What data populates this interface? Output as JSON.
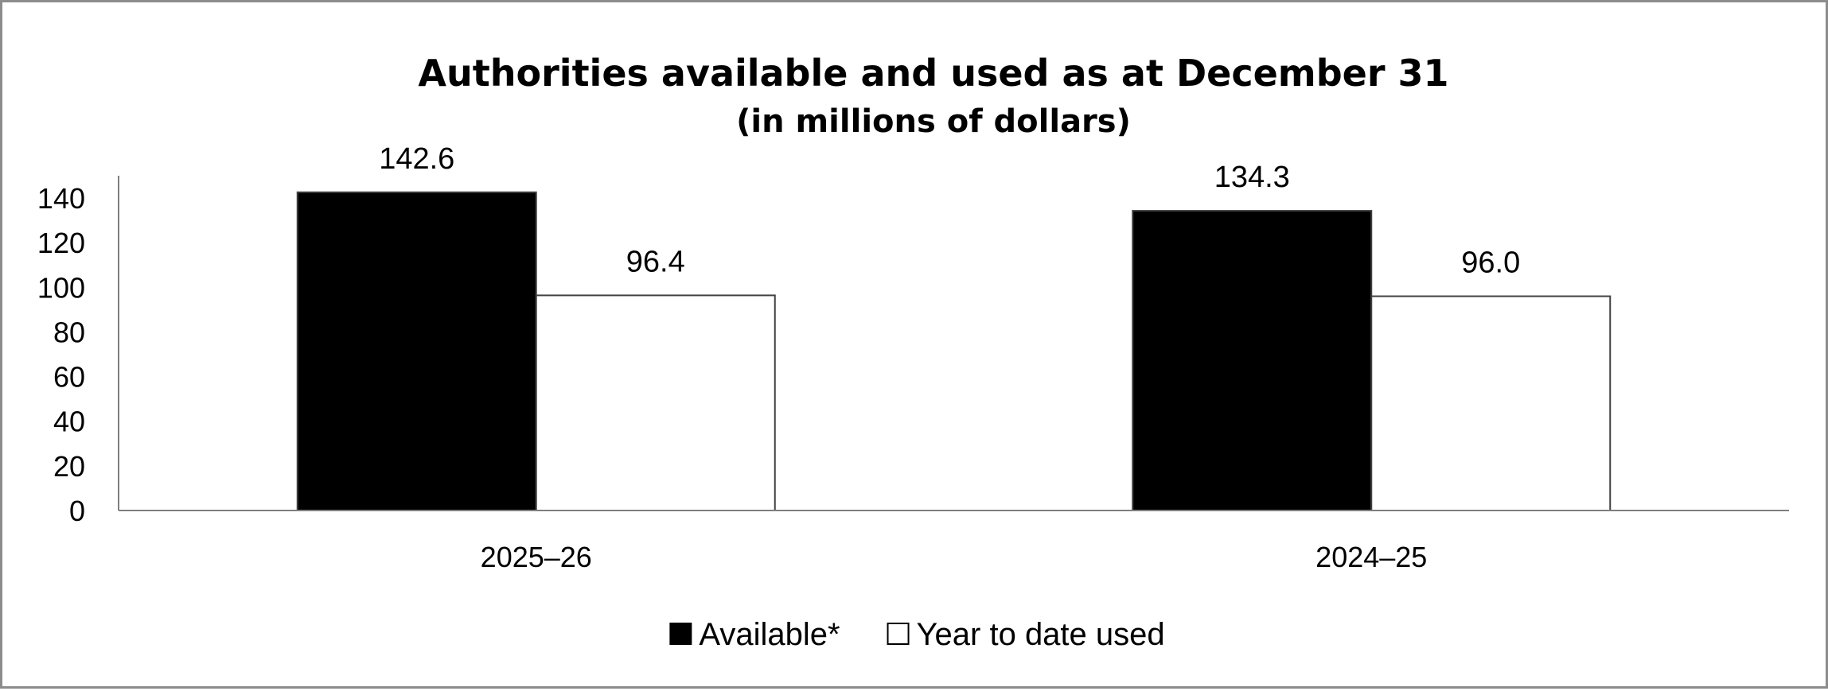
{
  "chart_data": {
    "type": "bar",
    "title": "Authorities available and used as at December 31",
    "subtitle": "(in millions of dollars)",
    "categories": [
      "2025–26",
      "2024–25"
    ],
    "series": [
      {
        "name": "Available*",
        "values": [
          142.6,
          134.3
        ],
        "value_labels": [
          "142.6",
          "134.3"
        ],
        "color": "#000000"
      },
      {
        "name": "Year to date used",
        "values": [
          96.4,
          96.0
        ],
        "value_labels": [
          "96.4",
          "96.0"
        ],
        "color": "#ffffff"
      }
    ],
    "ylim": [
      0,
      150
    ],
    "yticks": [
      0,
      20,
      40,
      60,
      80,
      100,
      120,
      140
    ],
    "grid": false,
    "legend_position": "bottom"
  }
}
